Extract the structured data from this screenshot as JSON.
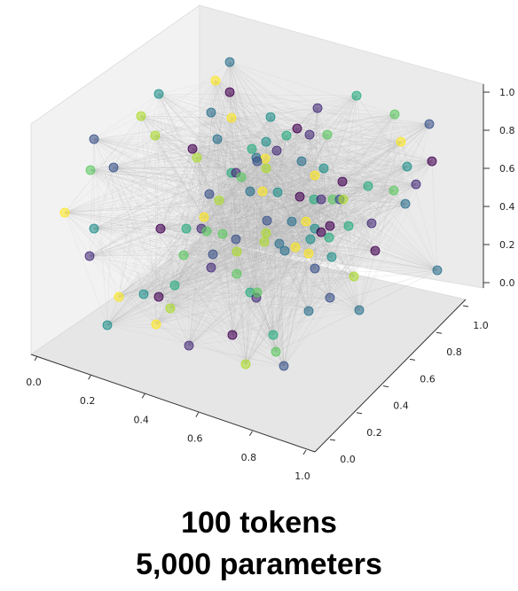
{
  "chart_data": {
    "type": "scatter",
    "projection": "3d",
    "title": "",
    "xlabel": "",
    "ylabel": "",
    "zlabel": "",
    "xlim": [
      0,
      1
    ],
    "ylim": [
      0,
      1
    ],
    "zlim": [
      0,
      1
    ],
    "x_ticks": [
      "0.0",
      "0.2",
      "0.4",
      "0.6",
      "0.8",
      "1.0"
    ],
    "y_ticks": [
      "0.0",
      "0.2",
      "0.4",
      "0.6",
      "0.8",
      "1.0"
    ],
    "z_ticks": [
      "0.0",
      "0.2",
      "0.4",
      "0.6",
      "0.8",
      "1.0"
    ],
    "grid": false,
    "legend": "none",
    "colormap": "viridis",
    "point_alpha": 0.6,
    "edges": "all-pairs light gray lines connecting points",
    "edge_color": "#b0b0b0",
    "point_count": 100
  },
  "caption": {
    "line1": "100 tokens",
    "line2": "5,000 parameters"
  }
}
